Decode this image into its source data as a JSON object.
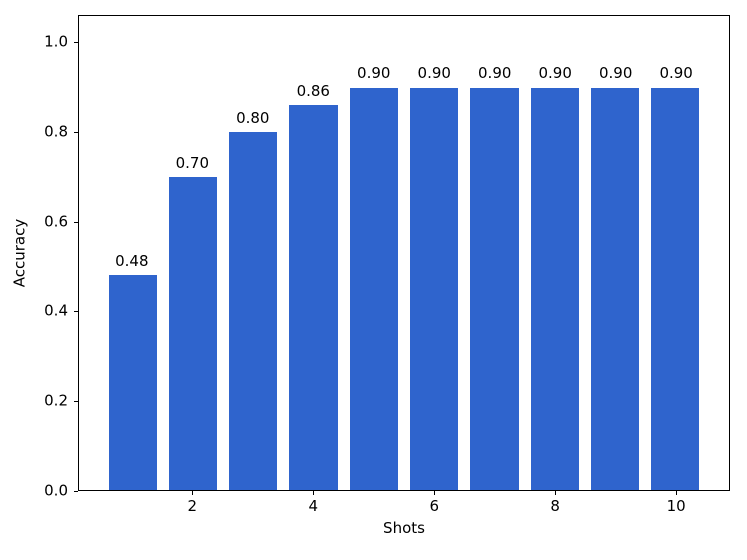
{
  "chart_data": {
    "type": "bar",
    "title": "",
    "xlabel": "Shots",
    "ylabel": "Accuracy",
    "x": [
      1,
      2,
      3,
      4,
      5,
      6,
      7,
      8,
      9,
      10
    ],
    "values": [
      0.48,
      0.7,
      0.8,
      0.86,
      0.9,
      0.9,
      0.9,
      0.9,
      0.9,
      0.9
    ],
    "bar_labels": [
      "0.48",
      "0.70",
      "0.80",
      "0.86",
      "0.90",
      "0.90",
      "0.90",
      "0.90",
      "0.90",
      "0.90"
    ],
    "bar_color": "#2F64CD",
    "bar_width": 0.8,
    "xlim": [
      0.11,
      10.89
    ],
    "ylim": [
      0,
      1.06
    ],
    "yticks": [
      0.0,
      0.2,
      0.4,
      0.6,
      0.8,
      1.0
    ],
    "ytick_labels": [
      "0.0",
      "0.2",
      "0.4",
      "0.6",
      "0.8",
      "1.0"
    ],
    "xticks": [
      2,
      4,
      6,
      8,
      10
    ],
    "xtick_labels": [
      "2",
      "4",
      "6",
      "8",
      "10"
    ],
    "grid": false,
    "legend": null,
    "axes_color": "#000000",
    "background_color": "#ffffff"
  }
}
